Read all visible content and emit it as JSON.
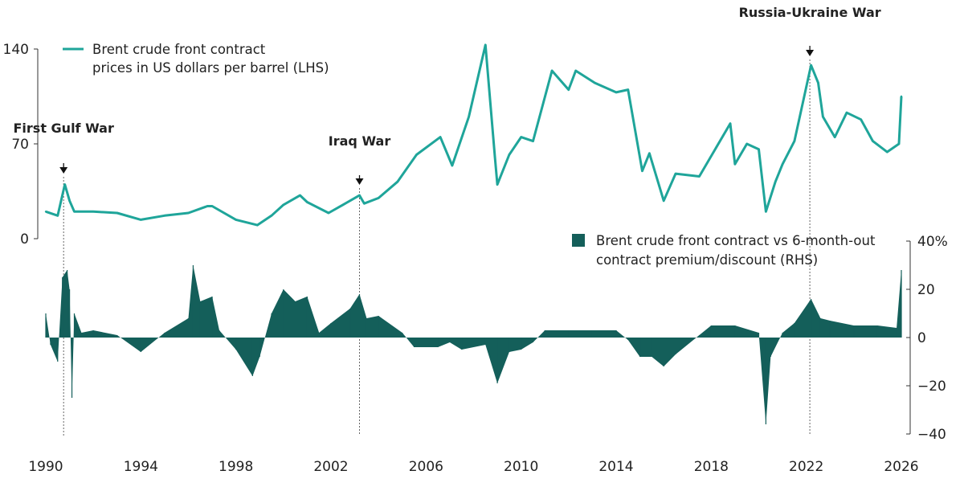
{
  "chart_data": [
    {
      "type": "line",
      "axis": "left",
      "series": [
        {
          "name": "Brent crude front contract prices in US dollars per barrel (LHS)",
          "color": "#1fa59a",
          "x": [
            1990.0,
            1990.5,
            1990.8,
            1991.0,
            1991.2,
            1992,
            1993,
            1994,
            1995,
            1996,
            1996.8,
            1997,
            1998,
            1998.9,
            1999.5,
            2000,
            2000.7,
            2001,
            2001.9,
            2002.5,
            2003.2,
            2003.4,
            2004,
            2004.8,
            2005.6,
            2006.6,
            2007.1,
            2007.8,
            2008.5,
            2008.9,
            2009.0,
            2009.5,
            2010,
            2010.5,
            2011.3,
            2012,
            2012.3,
            2013.1,
            2014.0,
            2014.5,
            2015.1,
            2015.4,
            2016.0,
            2016.5,
            2017.5,
            2018.8,
            2019.0,
            2019.5,
            2020.0,
            2020.3,
            2020.7,
            2021,
            2021.5,
            2022.2,
            2022.5,
            2022.7,
            2023.2,
            2023.7,
            2024.3,
            2024.8,
            2025.4,
            2025.9,
            2026.0
          ],
          "values": [
            20,
            17,
            40,
            28,
            20,
            20,
            19,
            14,
            17,
            19,
            24,
            24,
            14,
            10,
            17,
            25,
            32,
            27,
            19,
            25,
            32,
            26,
            30,
            42,
            62,
            75,
            54,
            90,
            143,
            60,
            40,
            62,
            75,
            72,
            124,
            110,
            124,
            115,
            108,
            110,
            50,
            63,
            28,
            48,
            46,
            85,
            55,
            70,
            66,
            20,
            42,
            55,
            72,
            128,
            115,
            90,
            75,
            93,
            88,
            72,
            64,
            70,
            105
          ]
        }
      ],
      "legend": [
        "Brent crude front contract",
        "prices in US dollars per barrel (LHS)"
      ],
      "ylim": [
        0,
        140
      ],
      "yticks": [
        "0",
        "70",
        "140"
      ]
    },
    {
      "type": "area",
      "axis": "right",
      "series": [
        {
          "name": "Brent crude front contract vs 6-month-out contract premium/discount (RHS)",
          "color": "#145f5a",
          "x": [
            1990,
            1990.2,
            1990.5,
            1990.7,
            1990.9,
            1991.0,
            1991.1,
            1991.2,
            1991.5,
            1992,
            1993,
            1994,
            1995,
            1996,
            1996.2,
            1996.5,
            1997,
            1997.3,
            1998,
            1998.7,
            1999,
            1999.5,
            2000,
            2000.5,
            2001,
            2001.5,
            2002,
            2002.8,
            2003.2,
            2003.5,
            2004,
            2005,
            2005.5,
            2006.5,
            2007,
            2007.5,
            2008.5,
            2009,
            2009.5,
            2010,
            2010.5,
            2011,
            2012,
            2013,
            2014,
            2014.5,
            2015,
            2015.5,
            2016,
            2016.5,
            2017.5,
            2018,
            2019,
            2020,
            2020.3,
            2020.5,
            2021,
            2021.5,
            2022.2,
            2022.6,
            2023,
            2024,
            2025,
            2025.8,
            2026.0
          ],
          "values": [
            10,
            -3,
            -10,
            25,
            28,
            20,
            -25,
            10,
            2,
            3,
            1,
            -6,
            2,
            8,
            30,
            15,
            17,
            3,
            -5,
            -16,
            -8,
            10,
            20,
            15,
            17,
            2,
            6,
            12,
            18,
            8,
            9,
            2,
            -4,
            -4,
            -2,
            -5,
            -3,
            -19,
            -6,
            -5,
            -2,
            3,
            3,
            3,
            3,
            -1,
            -8,
            -8,
            -12,
            -7,
            1,
            5,
            5,
            2,
            -36,
            -8,
            2,
            6,
            16,
            8,
            7,
            5,
            5,
            4,
            28
          ]
        }
      ],
      "legend": [
        "Brent crude front contract vs 6-month-out",
        "contract premium/discount (RHS)"
      ],
      "ylim": [
        -40,
        40
      ],
      "yticks": [
        "−40",
        "−20",
        "0",
        "20",
        "40%"
      ]
    }
  ],
  "xaxis": {
    "ticks": [
      "1990",
      "1994",
      "1998",
      "2002",
      "2006",
      "2010",
      "2014",
      "2018",
      "2022",
      "2026"
    ],
    "range": [
      1990,
      2026
    ]
  },
  "annotations": [
    {
      "label": "First Gulf War",
      "x": 1990.75
    },
    {
      "label": "Iraq War",
      "x": 2003.2
    },
    {
      "label": "Russia-Ukraine War",
      "x": 2022.15
    }
  ]
}
